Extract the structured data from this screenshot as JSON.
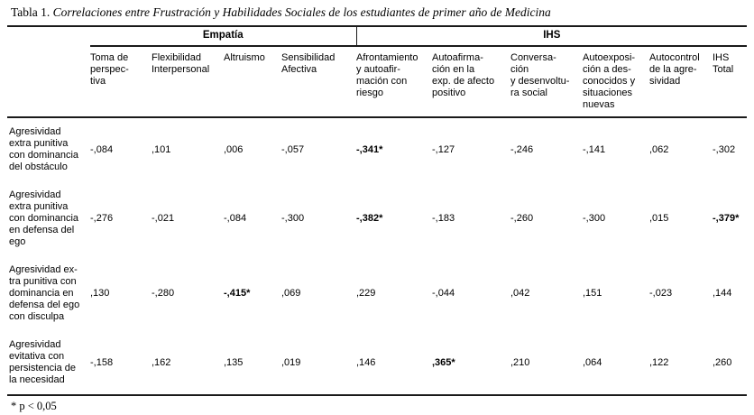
{
  "title": {
    "prefix": "Tabla 1.",
    "text": "Correlaciones entre Frustración y Habilidades Sociales de los estudiantes de primer año de Medicina"
  },
  "table": {
    "groups": [
      {
        "label": "Empatía"
      },
      {
        "label": "IHS"
      }
    ],
    "columns": [
      "Toma de\nperspec-\ntiva",
      "Flexibilidad\nInterpersonal",
      "Altruismo",
      "Sensibilidad\nAfectiva",
      "Afrontamiento\ny autoafir-\nmación con\nriesgo",
      "Autoafirma-\nción en la\nexp. de afecto\npositivo",
      "Conversa-\nción\ny desenvoltu-\nra social",
      "Autoexposi-\nción a des-\nconocidos y\nsituaciones\nnuevas",
      "Autocontrol\nde la agre-\nsividad",
      "IHS\nTotal"
    ],
    "rows": [
      {
        "label": "Agresividad\nextra punitiva\ncon dominancia\ndel obstáculo",
        "values": [
          "-,084",
          ",101",
          ",006",
          "-,057",
          "-,341*",
          "-,127",
          "-,246",
          "-,141",
          ",062",
          "-,302"
        ]
      },
      {
        "label": "Agresividad\nextra punitiva\ncon dominancia\nen defensa del\nego",
        "values": [
          "-,276",
          "-,021",
          "-,084",
          "-,300",
          "-,382*",
          "-,183",
          "-,260",
          "-,300",
          ",015",
          "-,379*"
        ]
      },
      {
        "label": "Agresividad ex-\ntra punitiva con\ndominancia en\ndefensa del ego\ncon disculpa",
        "values": [
          ",130",
          "-,280",
          "-,415*",
          ",069",
          ",229",
          "-,044",
          ",042",
          ",151",
          "-,023",
          ",144"
        ]
      },
      {
        "label": "Agresividad\nevitativa con\npersistencia de\nla necesidad",
        "values": [
          "-,158",
          ",162",
          ",135",
          ",019",
          ",146",
          ",365*",
          ",210",
          ",064",
          ",122",
          ",260"
        ]
      }
    ]
  },
  "footnote": "* p < 0,05"
}
